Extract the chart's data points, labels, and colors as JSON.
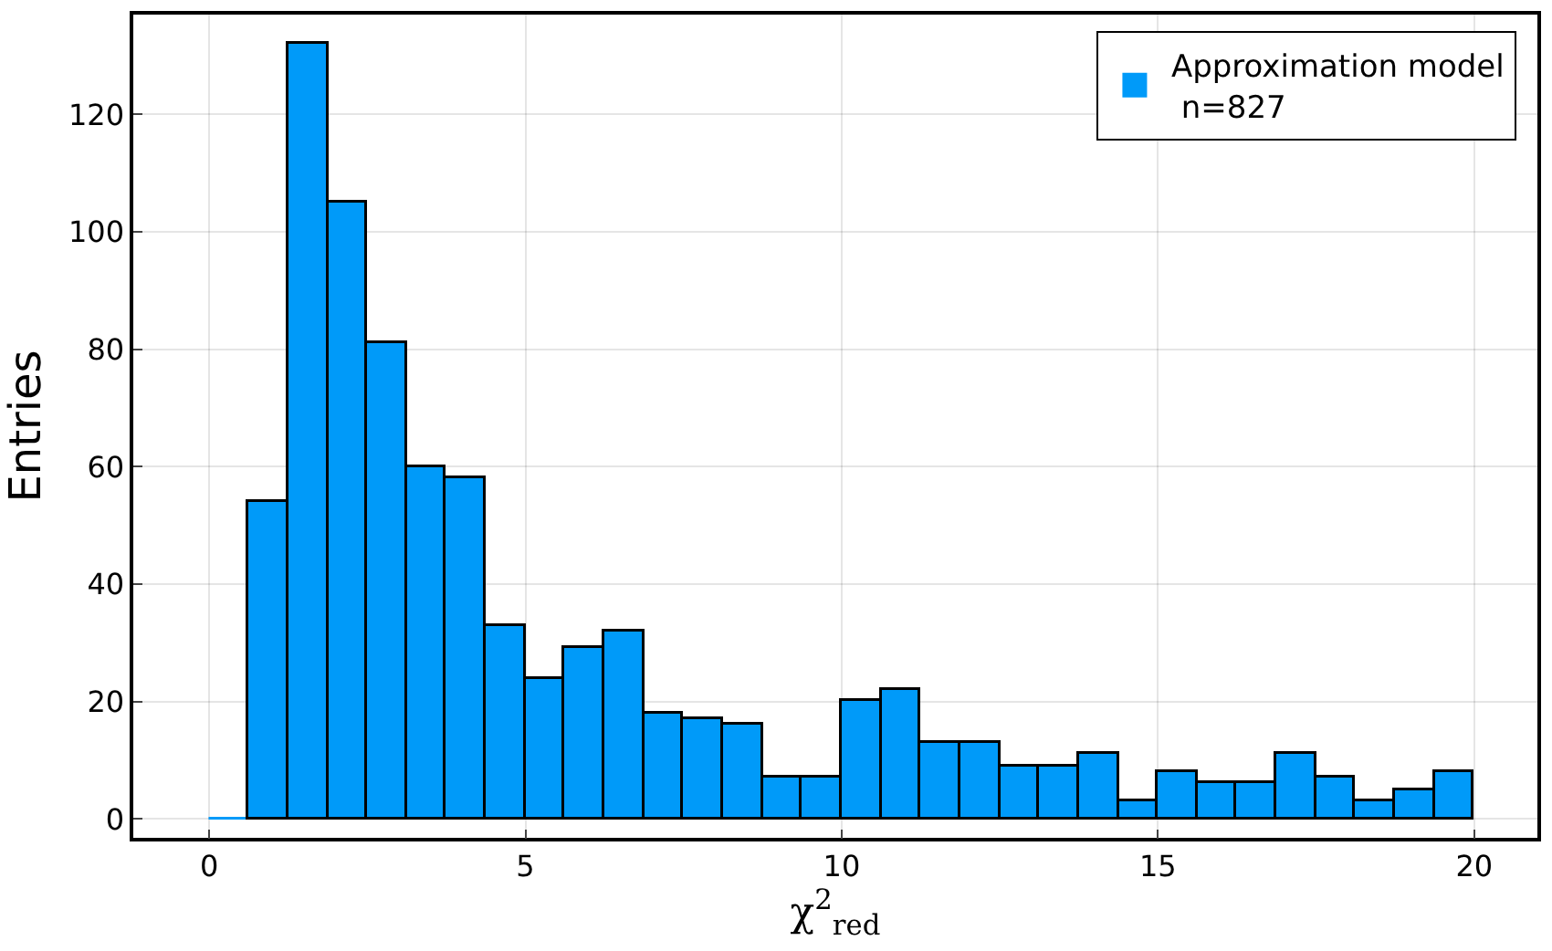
{
  "chart_data": {
    "type": "histogram",
    "xlabel": "χ$^{2}$$_{red}$",
    "ylabel": "Entries",
    "bins": [
      0,
      0.625,
      1.25,
      1.875,
      2.5,
      3.125,
      3.75,
      4.375,
      5,
      5.625,
      6.25,
      6.875,
      7.5,
      8.125,
      8.75,
      9.375,
      10,
      10.625,
      11.25,
      11.875,
      12.5,
      13.125,
      13.75,
      14.375,
      15,
      15.625,
      16.25,
      16.875,
      17.5,
      18.125,
      18.75,
      19.375,
      20
    ],
    "series": [
      {
        "name": "Approximation model\n n=827",
        "color": "#009af9",
        "values": [
          0,
          54,
          132,
          105,
          81,
          60,
          58,
          33,
          24,
          29,
          32,
          18,
          17,
          16,
          7,
          7,
          20,
          22,
          13,
          13,
          9,
          9,
          11,
          3,
          8,
          6,
          6,
          11,
          7,
          3,
          5,
          8
        ]
      }
    ],
    "xlim": [
      -1.2,
      21
    ],
    "ylim": [
      -3.2,
      137
    ],
    "xticks": [
      0,
      5,
      10,
      15,
      20
    ],
    "yticks": [
      0,
      20,
      40,
      60,
      80,
      100,
      120
    ],
    "grid": true,
    "legend": "top right"
  }
}
